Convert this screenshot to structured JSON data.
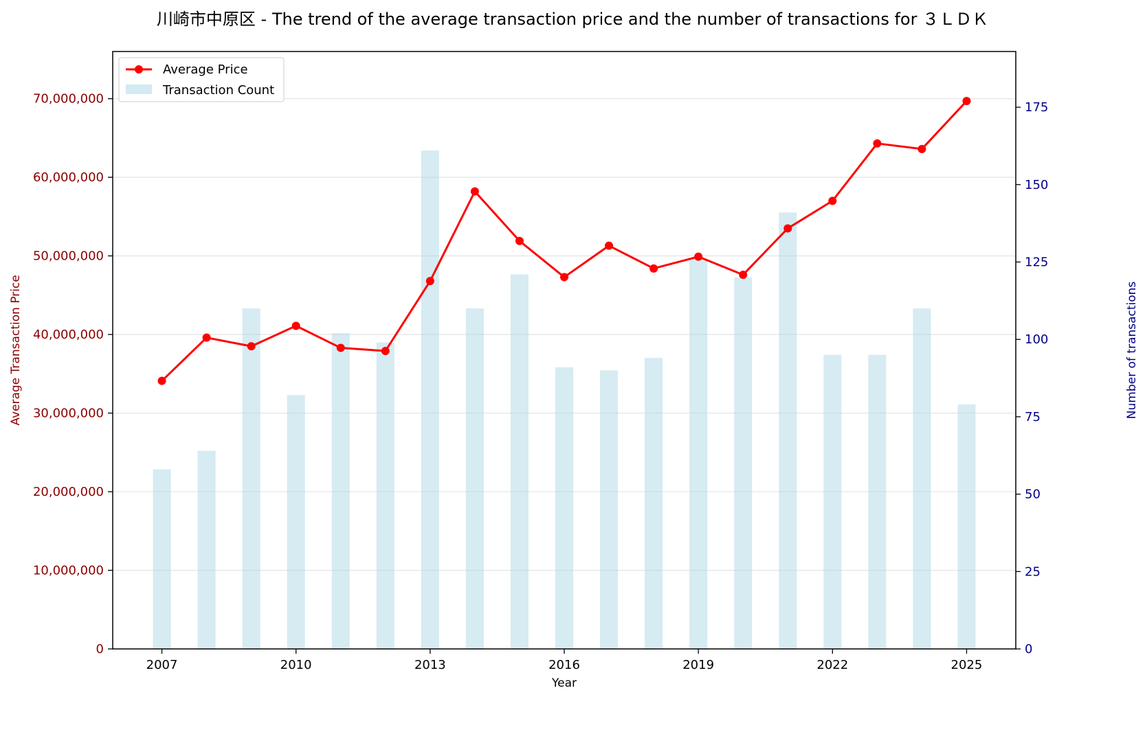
{
  "chart_data": {
    "type": "bar+line",
    "title": "川崎市中原区 - The trend of the average transaction price and the number of transactions for ３ＬＤＫ",
    "xlabel": "Year",
    "ylabel_left": "Average Transaction Price",
    "ylabel_right": "Number of transactions",
    "x": [
      2007,
      2008,
      2009,
      2010,
      2011,
      2012,
      2013,
      2014,
      2015,
      2016,
      2017,
      2018,
      2019,
      2020,
      2021,
      2022,
      2023,
      2024,
      2025
    ],
    "x_ticks": [
      "2007",
      "2010",
      "2013",
      "2016",
      "2019",
      "2022",
      "2025"
    ],
    "series": [
      {
        "name": "Average Price",
        "type": "line",
        "axis": "left",
        "color": "#ff0000",
        "values": [
          34100000,
          39600000,
          38500000,
          41100000,
          38300000,
          37900000,
          46800000,
          58200000,
          51900000,
          47300000,
          51300000,
          48400000,
          49900000,
          47600000,
          53500000,
          57000000,
          64300000,
          63600000,
          69700000
        ]
      },
      {
        "name": "Transaction Count",
        "type": "bar",
        "axis": "right",
        "color": "#add8e6",
        "values": [
          58,
          64,
          110,
          82,
          102,
          99,
          161,
          110,
          121,
          91,
          90,
          94,
          126,
          120,
          141,
          95,
          95,
          110,
          79
        ]
      }
    ],
    "ylim_left": [
      0,
      76000000
    ],
    "yticks_left": [
      "0",
      "10,000,000",
      "20,000,000",
      "30,000,000",
      "40,000,000",
      "50,000,000",
      "60,000,000",
      "70,000,000"
    ],
    "ylim_right": [
      0,
      193
    ],
    "yticks_right": [
      "0",
      "25",
      "50",
      "75",
      "100",
      "125",
      "150",
      "175"
    ],
    "grid": "horizontal",
    "legend_position": "top-left",
    "left_axis_color": "#8b0000",
    "right_axis_color": "#00008b"
  }
}
